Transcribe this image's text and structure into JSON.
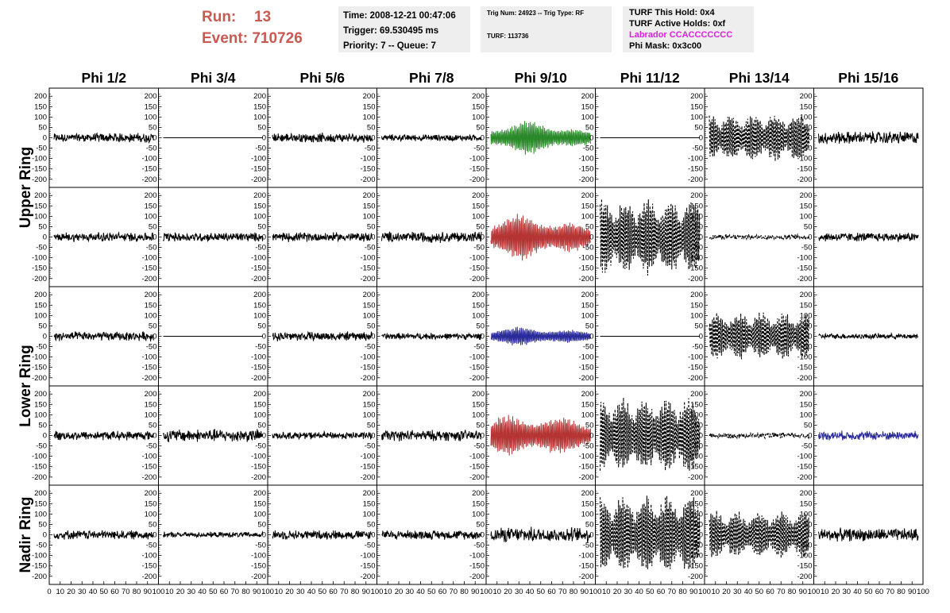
{
  "header": {
    "run_label": "Run:",
    "run_value": "13",
    "event_label": "Event:",
    "event_value": "710726"
  },
  "info_time": {
    "time": "Time: 2008-12-21 00:47:06",
    "trigger": "Trigger: 69.530495 ms",
    "priority": "Priority: 7 -- Queue: 7"
  },
  "info_trig": {
    "trig": "Trig Num: 24923 -- Trig Type: RF",
    "turf": "TURF: 113736"
  },
  "info_turf": {
    "this_hold": "TURF This Hold: 0x4",
    "active_holds": "TURF Active Holds: 0xf",
    "labrador": "Labrador CCACCCCCCC",
    "phi_mask": "Phi Mask: 0x3c00"
  },
  "colors": {
    "header_red": "#c85a52",
    "labrador_magenta": "#e020e0",
    "trace_black": "#000000",
    "trace_green": "#2a8a2a",
    "trace_red": "#b53535",
    "trace_blue": "#2a2a9a",
    "box_bg": "#eeeeee"
  },
  "chart_data": {
    "type": "line",
    "columns": [
      "Phi 1/2",
      "Phi 3/4",
      "Phi 5/6",
      "Phi 7/8",
      "Phi 9/10",
      "Phi 11/12",
      "Phi 13/14",
      "Phi 15/16"
    ],
    "rows": [
      "Upper Ring",
      "Lower Ring",
      "Nadir Ring"
    ],
    "ylim": [
      -220,
      220
    ],
    "yticks": [
      -200,
      -150,
      -100,
      -50,
      0,
      50,
      100,
      150,
      200
    ],
    "xlim": [
      0,
      100
    ],
    "xticks": [
      0,
      10,
      20,
      30,
      40,
      50,
      60,
      70,
      80,
      90,
      100
    ],
    "panels": [
      [
        {
          "style": "solid",
          "color": "black",
          "amplitude": 25,
          "envelope": "flat"
        },
        {
          "style": "solid",
          "color": "black",
          "amplitude": 0,
          "envelope": "flat"
        },
        {
          "style": "solid",
          "color": "black",
          "amplitude": 25,
          "envelope": "flat"
        },
        {
          "style": "solid",
          "color": "black",
          "amplitude": 18,
          "envelope": "flat"
        },
        {
          "style": "solid",
          "color": "green",
          "amplitude": 85,
          "envelope": "pulse"
        },
        {
          "style": "solid",
          "color": "black",
          "amplitude": 0,
          "envelope": "flat"
        },
        {
          "style": "dashed",
          "color": "black",
          "amplitude": 120,
          "envelope": "beat"
        },
        {
          "style": "solid",
          "color": "black",
          "amplitude": 35,
          "envelope": "flat"
        }
      ],
      [
        {
          "style": "solid",
          "color": "black",
          "amplitude": 25,
          "envelope": "flat"
        },
        {
          "style": "solid",
          "color": "black",
          "amplitude": 25,
          "envelope": "flat"
        },
        {
          "style": "solid",
          "color": "black",
          "amplitude": 25,
          "envelope": "flat"
        },
        {
          "style": "solid",
          "color": "black",
          "amplitude": 30,
          "envelope": "flat"
        },
        {
          "style": "solid",
          "color": "red",
          "amplitude": 120,
          "envelope": "pulse"
        },
        {
          "style": "dashed",
          "color": "black",
          "amplitude": 190,
          "envelope": "beat"
        },
        {
          "style": "dashed",
          "color": "black",
          "amplitude": 15,
          "envelope": "flat"
        },
        {
          "style": "solid",
          "color": "black",
          "amplitude": 25,
          "envelope": "flat"
        }
      ],
      [
        {
          "style": "solid",
          "color": "black",
          "amplitude": 25,
          "envelope": "flat"
        },
        {
          "style": "solid",
          "color": "black",
          "amplitude": 0,
          "envelope": "flat"
        },
        {
          "style": "solid",
          "color": "black",
          "amplitude": 25,
          "envelope": "flat"
        },
        {
          "style": "solid",
          "color": "black",
          "amplitude": 18,
          "envelope": "flat"
        },
        {
          "style": "solid",
          "color": "blue",
          "amplitude": 50,
          "envelope": "pulse"
        },
        {
          "style": "solid",
          "color": "black",
          "amplitude": 0,
          "envelope": "flat"
        },
        {
          "style": "dashed",
          "color": "black",
          "amplitude": 120,
          "envelope": "beat"
        },
        {
          "style": "solid",
          "color": "black",
          "amplitude": 15,
          "envelope": "flat"
        }
      ],
      [
        {
          "style": "solid",
          "color": "black",
          "amplitude": 25,
          "envelope": "flat"
        },
        {
          "style": "solid",
          "color": "black",
          "amplitude": 35,
          "envelope": "flat"
        },
        {
          "style": "solid",
          "color": "black",
          "amplitude": 20,
          "envelope": "flat"
        },
        {
          "style": "solid",
          "color": "black",
          "amplitude": 30,
          "envelope": "flat"
        },
        {
          "style": "solid",
          "color": "red",
          "amplitude": 120,
          "envelope": "pulse"
        },
        {
          "style": "dashed",
          "color": "black",
          "amplitude": 190,
          "envelope": "beat"
        },
        {
          "style": "dashed",
          "color": "black",
          "amplitude": 15,
          "envelope": "flat"
        },
        {
          "style": "solid",
          "color": "blue",
          "amplitude": 25,
          "envelope": "flat"
        }
      ],
      [
        {
          "style": "solid",
          "color": "black",
          "amplitude": 25,
          "envelope": "flat"
        },
        {
          "style": "solid",
          "color": "black",
          "amplitude": 15,
          "envelope": "flat"
        },
        {
          "style": "solid",
          "color": "black",
          "amplitude": 25,
          "envelope": "flat"
        },
        {
          "style": "solid",
          "color": "black",
          "amplitude": 25,
          "envelope": "flat"
        },
        {
          "style": "solid",
          "color": "black",
          "amplitude": 40,
          "envelope": "flat"
        },
        {
          "style": "dashed",
          "color": "black",
          "amplitude": 200,
          "envelope": "beat"
        },
        {
          "style": "dashed",
          "color": "black",
          "amplitude": 120,
          "envelope": "beat"
        },
        {
          "style": "solid",
          "color": "black",
          "amplitude": 35,
          "envelope": "flat"
        }
      ]
    ]
  }
}
